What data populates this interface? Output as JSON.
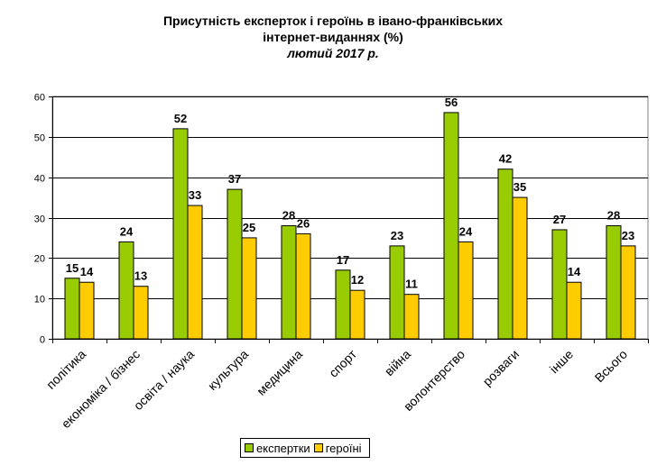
{
  "chart_data": {
    "type": "bar",
    "title": "Присутність експерток і героїнь в івано-франківських",
    "title_line2": "інтернет-виданнях (%)",
    "subtitle": "лютий 2017 р.",
    "categories": [
      "політика",
      "економіка / бізнес",
      "освіта / наука",
      "культура",
      "медицина",
      "спорт",
      "війна",
      "волонтерство",
      "розваги",
      "інше",
      "Всього"
    ],
    "series": [
      {
        "name": "експертки",
        "color": "#99CC00",
        "values": [
          15,
          24,
          52,
          37,
          28,
          17,
          23,
          56,
          42,
          27,
          28
        ]
      },
      {
        "name": "героїні",
        "color": "#FFCC00",
        "values": [
          14,
          13,
          33,
          25,
          26,
          12,
          11,
          24,
          35,
          14,
          23
        ]
      }
    ],
    "ylim": [
      0,
      60
    ],
    "yticks": [
      0,
      10,
      20,
      30,
      40,
      50,
      60
    ],
    "grid": true,
    "legend_position": "bottom"
  }
}
